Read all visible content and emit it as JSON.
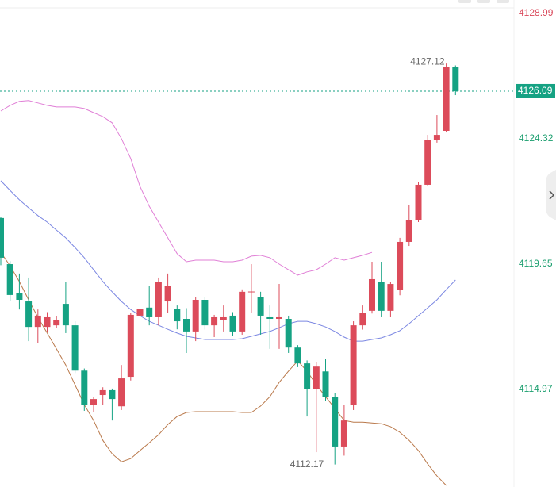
{
  "chart_data": {
    "type": "candlestick",
    "up_color": "#dc4b5a",
    "down_color": "#15a283",
    "ylim": [
      4111.33,
      4129.49
    ],
    "yticks": [
      4128.99,
      4124.32,
      4119.65,
      4114.97
    ],
    "last_price": 4126.09,
    "annotations": [
      {
        "text": "4127.12",
        "value": 4127.12,
        "index": 48
      },
      {
        "text": "4112.17",
        "value": 4112.17,
        "index": 36
      }
    ],
    "open": [
      4121.36,
      4119.64,
      4118.55,
      4118.25,
      4117.3,
      4117.3,
      4117.36,
      4118.16,
      4117.36,
      4115.67,
      4114.4,
      4114.76,
      4114.94,
      4114.34,
      4115.44,
      4117.72,
      4118.02,
      4117.66,
      4118.25,
      4117.96,
      4117.6,
      4117.13,
      4118.31,
      4117.36,
      4117.55,
      4117.72,
      4117.13,
      4118.6,
      4118.4,
      4117.66,
      4117.6,
      4117.6,
      4116.53,
      4115.94,
      4114.99,
      4115.64,
      4114.7,
      4112.84,
      4114.4,
      4117.36,
      4117.9,
      4118.99,
      4117.9,
      4118.69,
      4120.47,
      4121.27,
      4122.6,
      4124.26,
      4124.61,
      4127.0
    ],
    "high": [
      4121.4,
      4119.75,
      4119.29,
      4119.14,
      4117.95,
      4117.85,
      4117.7,
      4118.99,
      4117.51,
      4115.75,
      4114.7,
      4115.05,
      4115.0,
      4115.88,
      4117.81,
      4118.1,
      4118.84,
      4119.14,
      4119.29,
      4118.1,
      4118.0,
      4118.4,
      4118.4,
      4117.75,
      4118.1,
      4117.85,
      4118.7,
      4119.64,
      4118.61,
      4118.1,
      4118.9,
      4117.72,
      4116.62,
      4116.05,
      4116.0,
      4116.1,
      4114.85,
      4114.4,
      4117.51,
      4118.1,
      4119.73,
      4119.73,
      4118.99,
      4120.62,
      4121.86,
      4122.69,
      4124.46,
      4125.2,
      4127.12,
      4127.05
    ],
    "low": [
      4119.6,
      4118.25,
      4117.95,
      4116.77,
      4116.71,
      4117.1,
      4117.25,
      4117.07,
      4115.58,
      4114.17,
      4114.11,
      4114.4,
      4113.81,
      4114.2,
      4115.3,
      4117.36,
      4117.36,
      4117.36,
      4117.81,
      4117.21,
      4116.33,
      4116.77,
      4117.2,
      4116.92,
      4117.13,
      4116.98,
      4117.01,
      4117.81,
      4117.01,
      4116.48,
      4116.48,
      4116.33,
      4115.8,
      4113.96,
      4112.63,
      4114.55,
      4112.17,
      4112.5,
      4114.2,
      4117.2,
      4117.8,
      4117.66,
      4117.66,
      4118.48,
      4120.32,
      4121.21,
      4122.54,
      4124.17,
      4124.55,
      4125.94
    ],
    "close": [
      4119.88,
      4118.49,
      4118.31,
      4117.3,
      4117.72,
      4117.66,
      4117.57,
      4117.36,
      4115.67,
      4114.4,
      4114.61,
      4114.94,
      4114.61,
      4115.38,
      4117.75,
      4117.96,
      4117.66,
      4118.99,
      4118.84,
      4117.51,
      4117.13,
      4118.31,
      4117.36,
      4117.66,
      4117.66,
      4117.13,
      4118.61,
      4118.62,
      4117.72,
      4117.6,
      4117.66,
      4116.53,
      4115.94,
      4114.99,
      4115.82,
      4114.7,
      4112.84,
      4113.81,
      4117.36,
      4117.81,
      4119.08,
      4117.9,
      4118.9,
      4120.47,
      4121.27,
      4122.6,
      4124.26,
      4124.46,
      4127.0,
      4126.09
    ],
    "overlays": [
      {
        "color": "#e07fd6",
        "values": [
          4125.35,
          4125.56,
          4125.71,
          4125.74,
          4125.65,
          4125.56,
          4125.5,
          4125.5,
          4125.5,
          4125.44,
          4125.29,
          4125.14,
          4124.91,
          4124.32,
          4123.58,
          4122.54,
          4121.8,
          4121.21,
          4120.62,
          4120.03,
          4119.73,
          4119.79,
          4119.79,
          4119.79,
          4119.73,
          4119.73,
          4119.79,
          4119.94,
          4119.97,
          4119.88,
          4119.64,
          4119.43,
          4119.23,
          4119.35,
          4119.43,
          4119.64,
          4119.88,
          4119.79,
          4119.88,
          4119.97,
          4120.08,
          null,
          null,
          null,
          null,
          null,
          null,
          null,
          null,
          null
        ]
      },
      {
        "color": "#7b87e2",
        "values": [
          4122.75,
          4122.39,
          4122.04,
          4121.74,
          4121.45,
          4121.21,
          4120.91,
          4120.62,
          4120.26,
          4119.88,
          4119.43,
          4118.99,
          4118.61,
          4118.25,
          4117.95,
          4117.72,
          4117.51,
          4117.36,
          4117.21,
          4117.07,
          4116.95,
          4116.89,
          4116.83,
          4116.83,
          4116.83,
          4116.83,
          4116.86,
          4116.95,
          4117.04,
          4117.13,
          4117.27,
          4117.42,
          4117.51,
          4117.51,
          4117.42,
          4117.3,
          4117.13,
          4116.92,
          4116.77,
          4116.77,
          4116.83,
          4116.89,
          4117.01,
          4117.16,
          4117.42,
          4117.72,
          4118.01,
          4118.31,
          4118.69,
          4119.05
        ]
      },
      {
        "color": "#b9784a",
        "values": [
          4120.08,
          4119.58,
          4118.99,
          4118.31,
          4117.66,
          4117.07,
          4116.48,
          4115.88,
          4115.14,
          4114.4,
          4113.81,
          4113.07,
          4112.57,
          4112.27,
          4112.39,
          4112.69,
          4112.98,
          4113.28,
          4113.66,
          4113.96,
          4114.11,
          4114.14,
          4114.14,
          4114.14,
          4114.14,
          4114.14,
          4114.11,
          4114.11,
          4114.35,
          4114.7,
          4115.23,
          4115.65,
          4116.03,
          4115.65,
          4115.14,
          4114.7,
          4114.26,
          4113.81,
          4113.75,
          4113.75,
          4113.72,
          4113.69,
          4113.58,
          4113.37,
          4113.07,
          4112.69,
          4112.19,
          4111.74,
          4111.39,
          null
        ]
      }
    ]
  }
}
